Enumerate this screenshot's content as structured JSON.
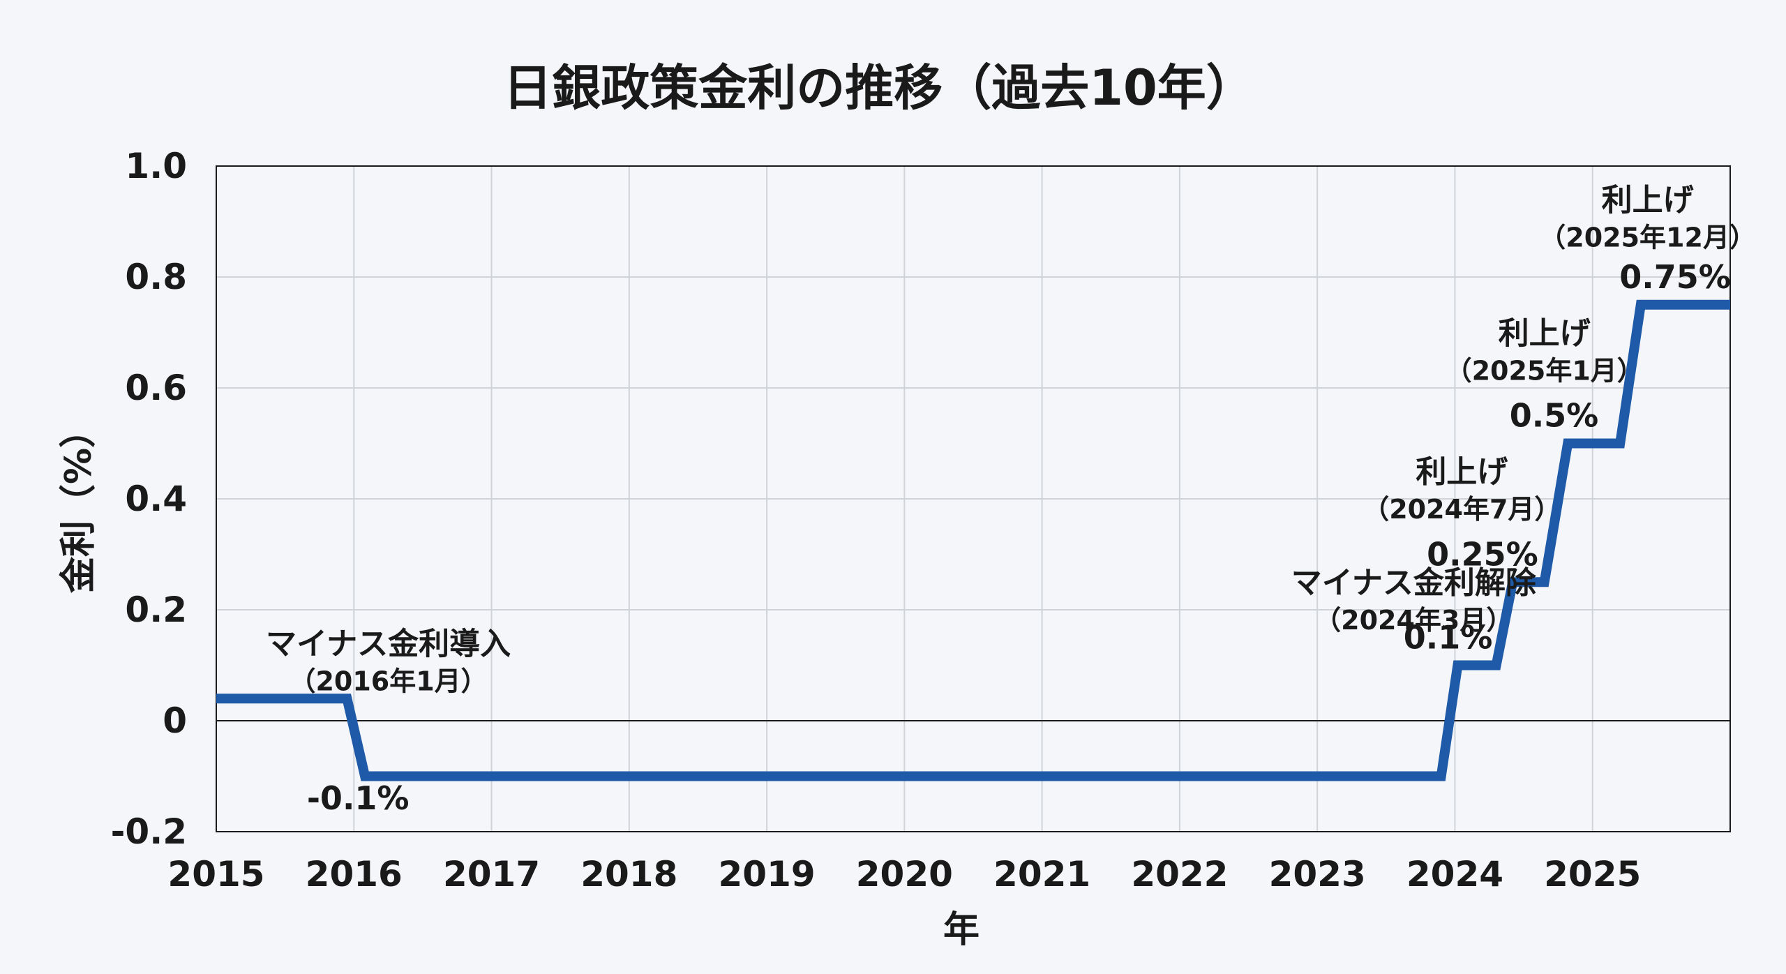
{
  "chart_data": {
    "type": "line",
    "title": "日銀政策金利の推移（過去10年）",
    "xlabel": "年",
    "ylabel": "金利（%）",
    "xlim": [
      2015,
      2026
    ],
    "ylim": [
      -0.2,
      1.0
    ],
    "x_ticks": [
      "2015",
      "2016",
      "2017",
      "2018",
      "2019",
      "2020",
      "2021",
      "2022",
      "2023",
      "2024",
      "2025"
    ],
    "y_ticks": [
      "1.0",
      "0.8",
      "0.6",
      "0.4",
      "0.2",
      "0",
      "-0.2"
    ],
    "grid": true,
    "series": [
      {
        "color": "#1e5aa8",
        "x": [
          2015,
          2015.95,
          2016.08,
          2023.9,
          2024.02,
          2024.3,
          2024.42,
          2024.65,
          2024.82,
          2025.2,
          2025.35,
          2026
        ],
        "y": [
          0.04,
          0.04,
          -0.1,
          -0.1,
          0.1,
          0.1,
          0.25,
          0.25,
          0.5,
          0.5,
          0.75,
          0.75
        ]
      }
    ],
    "annotations": [
      {
        "id": "ann1",
        "line1": "マイナス金利導入",
        "line2": "（2016年1月）",
        "x": 2016.25,
        "y": 0.12
      },
      {
        "id": "ann2",
        "line1": "マイナス金利解除",
        "line2": "（2024年3月）",
        "x": 2023.7,
        "y": 0.23
      },
      {
        "id": "ann3",
        "line1": "利上げ",
        "line2": "（2024年7月）",
        "x": 2024.05,
        "y": 0.43
      },
      {
        "id": "ann4",
        "line1": "利上げ",
        "line2": "（2025年1月）",
        "x": 2024.65,
        "y": 0.68
      },
      {
        "id": "ann5",
        "line1": "利上げ",
        "line2": "（2025年12月）",
        "x": 2025.4,
        "y": 0.92
      }
    ],
    "value_labels": [
      {
        "id": "v1",
        "text": "-0.1%",
        "x": 2016.03,
        "y": -0.16
      },
      {
        "id": "v2",
        "text": "0.1%",
        "x": 2023.95,
        "y": 0.13
      },
      {
        "id": "v3",
        "text": "0.25%",
        "x": 2024.2,
        "y": 0.28
      },
      {
        "id": "v4",
        "text": "0.5%",
        "x": 2024.72,
        "y": 0.53
      },
      {
        "id": "v5",
        "text": "0.75%",
        "x": 2025.6,
        "y": 0.78
      }
    ]
  }
}
